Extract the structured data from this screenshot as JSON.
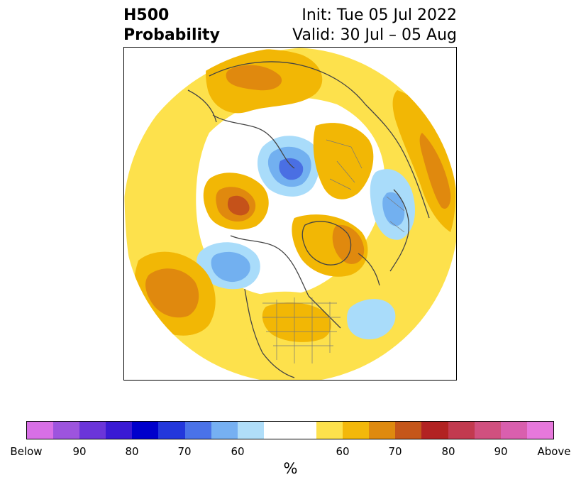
{
  "title": {
    "left_line1": "H500",
    "left_line2": "Probability",
    "right_line1": "Init: Tue 05 Jul 2022",
    "right_line2": "Valid: 30 Jul – 05 Aug"
  },
  "map": {
    "projection": "north-polar-stereographic",
    "boundary": "circular",
    "legend_colors": {
      "above_60": "#fde14c",
      "above_65": "#f2b705",
      "above_70": "#e0890e",
      "above_75": "#c5521a",
      "below_60": "#a9dcfa",
      "below_65": "#72b0f0",
      "below_70": "#4a6fe3",
      "below_75": "#2a3fd8"
    },
    "features": [
      {
        "label": "Above normal anomaly over Arctic Siberia",
        "category": "above"
      },
      {
        "label": "Below normal anomaly over Barents/Kara Sea",
        "category": "below"
      },
      {
        "label": "Above normal anomaly over East Asia",
        "category": "above"
      },
      {
        "label": "Above normal anomaly over Greenland",
        "category": "above"
      },
      {
        "label": "Above normal anomaly over Alaska/Yukon",
        "category": "above"
      },
      {
        "label": "Below normal anomaly over Europe",
        "category": "below"
      },
      {
        "label": "Below normal anomaly over Gulf of Alaska",
        "category": "below"
      },
      {
        "label": "Above normal anomaly over central-east United States",
        "category": "above"
      },
      {
        "label": "Below normal anomaly over central Atlantic",
        "category": "below"
      },
      {
        "label": "Above normal anomaly over North Pacific",
        "category": "above"
      }
    ]
  },
  "colorbar": {
    "colors": [
      "#d86fe6",
      "#9d54de",
      "#6b35d9",
      "#3a1ad4",
      "#0000cc",
      "#2337dc",
      "#4a72e8",
      "#76b0f2",
      "#b0def9",
      "#ffffff",
      "#fde14c",
      "#f3b80a",
      "#df8a0f",
      "#c5561a",
      "#b22222",
      "#c23a4f",
      "#d0507f",
      "#d95fae",
      "#e778dc"
    ],
    "tick_labels": [
      "Below",
      "90",
      "80",
      "70",
      "60",
      "60",
      "70",
      "80",
      "90",
      "Above"
    ],
    "unit_label": "%"
  }
}
